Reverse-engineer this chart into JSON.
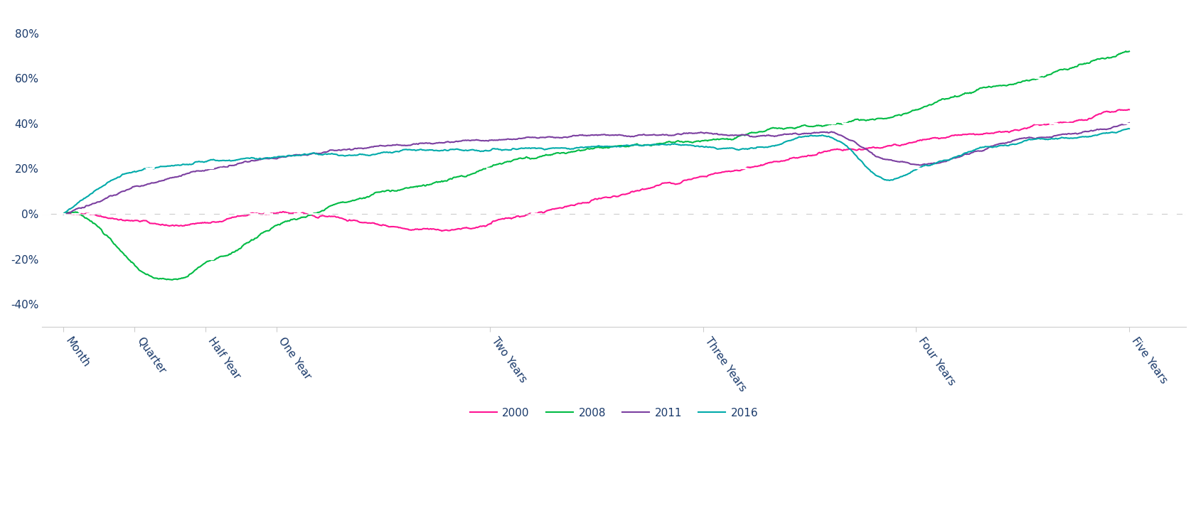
{
  "x_labels": [
    "Month",
    "Quarter",
    "Half Year",
    "One Year",
    "Two Years",
    "Three Years",
    "Four Years",
    "Five Years"
  ],
  "x_tick_pos": [
    0,
    1,
    2,
    3,
    6,
    9,
    12,
    15
  ],
  "y_ticks": [
    -0.4,
    -0.2,
    0.0,
    0.2,
    0.4,
    0.6,
    0.8
  ],
  "y_lim": [
    -0.5,
    0.9
  ],
  "x_lim": [
    -0.3,
    15.8
  ],
  "series": {
    "2000": {
      "color": "#FF1493",
      "label": "2000"
    },
    "2008": {
      "color": "#00BB44",
      "label": "2008"
    },
    "2011": {
      "color": "#7B3FA0",
      "label": "2011"
    },
    "2016": {
      "color": "#00AAAA",
      "label": "2016"
    }
  },
  "background_color": "#FFFFFF",
  "grid_color": "#CCCCCC",
  "axis_color": "#1a3a6b",
  "n_points": 1260,
  "legend_fontsize": 11,
  "tick_fontsize": 11,
  "line_width": 1.5
}
